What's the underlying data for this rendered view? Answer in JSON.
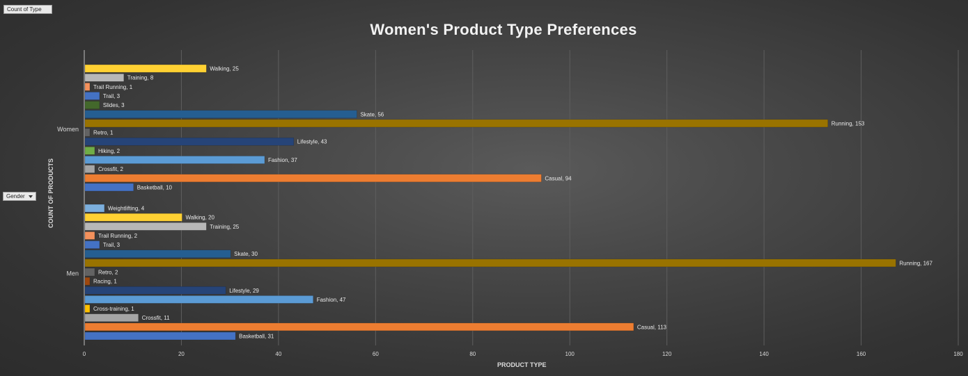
{
  "pivot_buttons": {
    "values_field": "Count of Type",
    "axis_field": "Gender"
  },
  "chart_data": {
    "type": "bar",
    "orientation": "horizontal",
    "title": "Women's Product Type Preferences",
    "xlabel": "PRODUCT TYPE",
    "ylabel": "COUNT OF PRODUCTS",
    "xlim": [
      0,
      180
    ],
    "xticks": [
      0,
      20,
      40,
      60,
      80,
      100,
      120,
      140,
      160,
      180
    ],
    "grid": true,
    "legend": "none",
    "groups": [
      {
        "name": "Men",
        "bars": [
          {
            "label": "Basketball",
            "value": 31,
            "color": "#4472c4"
          },
          {
            "label": "Casual",
            "value": 113,
            "color": "#ed7d31"
          },
          {
            "label": "Crossfit",
            "value": 11,
            "color": "#a5a5a5"
          },
          {
            "label": "Cross-training",
            "value": 1,
            "color": "#ffc000"
          },
          {
            "label": "Fashion",
            "value": 47,
            "color": "#5b9bd5"
          },
          {
            "label": "Lifestyle",
            "value": 29,
            "color": "#264478"
          },
          {
            "label": "Racing",
            "value": 1,
            "color": "#9e480e"
          },
          {
            "label": "Retro",
            "value": 2,
            "color": "#636363"
          },
          {
            "label": "Running",
            "value": 167,
            "color": "#997300"
          },
          {
            "label": "Skate",
            "value": 30,
            "color": "#255e91"
          },
          {
            "label": "Trail",
            "value": 3,
            "color": "#4472c4"
          },
          {
            "label": "Trail Running",
            "value": 2,
            "color": "#f4915c"
          },
          {
            "label": "Training",
            "value": 25,
            "color": "#b7b7b7"
          },
          {
            "label": "Walking",
            "value": 20,
            "color": "#ffd133"
          },
          {
            "label": "Weightlifting",
            "value": 4,
            "color": "#7cafdd"
          }
        ]
      },
      {
        "name": "Women",
        "bars": [
          {
            "label": "Basketball",
            "value": 10,
            "color": "#4472c4"
          },
          {
            "label": "Casual",
            "value": 94,
            "color": "#ed7d31"
          },
          {
            "label": "Crossfit",
            "value": 2,
            "color": "#a5a5a5"
          },
          {
            "label": "Fashion",
            "value": 37,
            "color": "#5b9bd5"
          },
          {
            "label": "Hiking",
            "value": 2,
            "color": "#70ad47"
          },
          {
            "label": "Lifestyle",
            "value": 43,
            "color": "#264478"
          },
          {
            "label": "Retro",
            "value": 1,
            "color": "#636363"
          },
          {
            "label": "Running",
            "value": 153,
            "color": "#997300"
          },
          {
            "label": "Skate",
            "value": 56,
            "color": "#255e91"
          },
          {
            "label": "Slides",
            "value": 3,
            "color": "#43682b"
          },
          {
            "label": "Trail",
            "value": 3,
            "color": "#4472c4"
          },
          {
            "label": "Trail Running",
            "value": 1,
            "color": "#f4915c"
          },
          {
            "label": "Training",
            "value": 8,
            "color": "#b7b7b7"
          },
          {
            "label": "Walking",
            "value": 25,
            "color": "#ffd133"
          }
        ]
      }
    ]
  }
}
